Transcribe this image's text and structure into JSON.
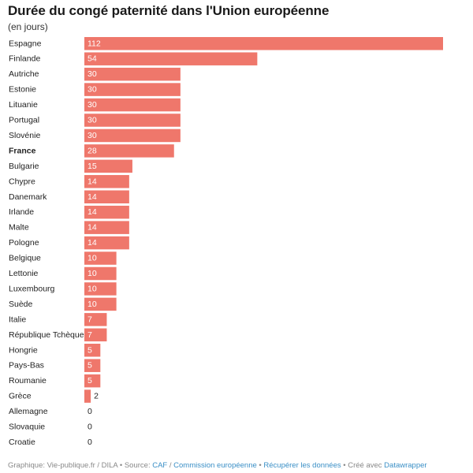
{
  "title": "Durée du congé paternité dans l'Union européenne",
  "subtitle": "(en jours)",
  "chart_data": {
    "type": "bar",
    "orientation": "horizontal",
    "categories": [
      "Espagne",
      "Finlande",
      "Autriche",
      "Estonie",
      "Lituanie",
      "Portugal",
      "Slovénie",
      "France",
      "Bulgarie",
      "Chypre",
      "Danemark",
      "Irlande",
      "Malte",
      "Pologne",
      "Belgique",
      "Lettonie",
      "Luxembourg",
      "Suède",
      "Italie",
      "République Tchèque",
      "Hongrie",
      "Pays-Bas",
      "Roumanie",
      "Grèce",
      "Allemagne",
      "Slovaquie",
      "Croatie"
    ],
    "values": [
      112,
      54,
      30,
      30,
      30,
      30,
      30,
      28,
      15,
      14,
      14,
      14,
      14,
      14,
      10,
      10,
      10,
      10,
      7,
      7,
      5,
      5,
      5,
      2,
      0,
      0,
      0
    ],
    "highlight": "France",
    "bar_color": "#ef776b",
    "xlim": [
      0,
      112
    ]
  },
  "footer": {
    "prefix": "Graphique: Vie-publique.fr / DILA • Source: ",
    "caf": "CAF",
    "slash": " / ",
    "commission": "Commission européenne",
    "sep1": " • ",
    "download": "Récupérer les données",
    "sep2": " • Créé avec ",
    "datawrapper": "Datawrapper"
  },
  "colors": {
    "link": "#3a8fc6",
    "bar": "#ef776b"
  }
}
